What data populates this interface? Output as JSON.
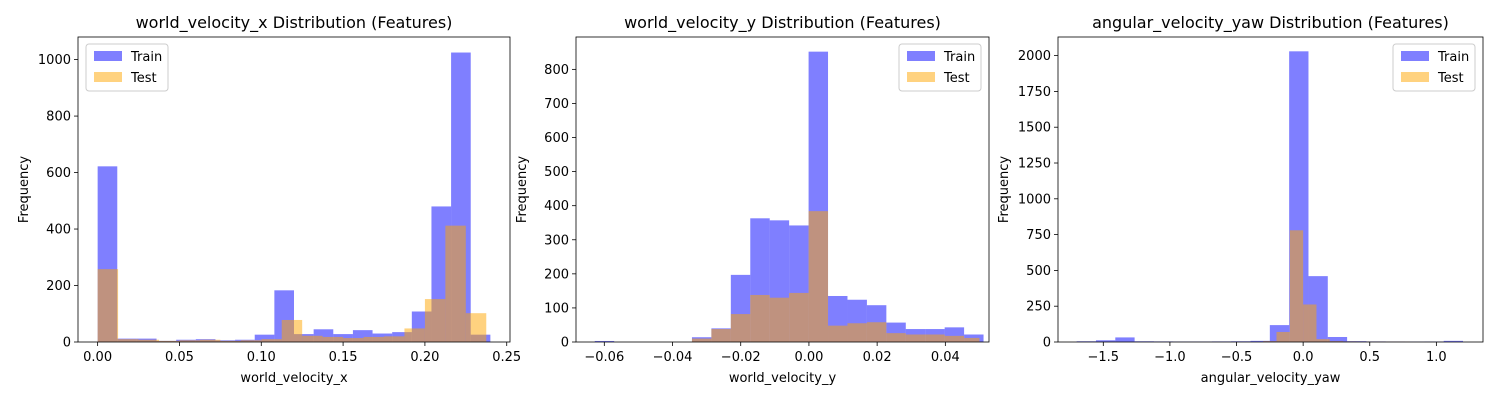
{
  "figure": {
    "background": "#ffffff"
  },
  "colors": {
    "train": "#0000ff",
    "test": "#ffa500",
    "train_alpha": 0.5,
    "test_alpha": 0.5
  },
  "chart_data": [
    {
      "type": "bar",
      "title": "world_velocity_x Distribution (Features)",
      "xlabel": "world_velocity_x",
      "ylabel": "Frequency",
      "xlim": [
        -0.012,
        0.252
      ],
      "ylim": [
        0,
        1080
      ],
      "xticks": [
        0.0,
        0.05,
        0.1,
        0.15,
        0.2,
        0.25
      ],
      "xtick_labels": [
        "0.00",
        "0.05",
        "0.10",
        "0.15",
        "0.20",
        "0.25"
      ],
      "yticks": [
        0,
        200,
        400,
        600,
        800,
        1000
      ],
      "ytick_labels": [
        "0",
        "200",
        "400",
        "600",
        "800",
        "1000"
      ],
      "legend": {
        "placement": "upper-left",
        "entries": [
          "Train",
          "Test"
        ]
      },
      "series": [
        {
          "name": "Train",
          "bin_edges": [
            0.0,
            0.012,
            0.024,
            0.036,
            0.048,
            0.06,
            0.072,
            0.084,
            0.096,
            0.108,
            0.12,
            0.132,
            0.144,
            0.156,
            0.168,
            0.18,
            0.192,
            0.204,
            0.216,
            0.228,
            0.24
          ],
          "values": [
            622,
            12,
            12,
            4,
            8,
            10,
            6,
            8,
            26,
            183,
            28,
            45,
            28,
            42,
            30,
            35,
            108,
            480,
            1025,
            26
          ]
        },
        {
          "name": "Test",
          "bin_edges": [
            0.0,
            0.0125,
            0.025,
            0.0375,
            0.05,
            0.0625,
            0.075,
            0.0875,
            0.1,
            0.1125,
            0.125,
            0.1375,
            0.15,
            0.1625,
            0.175,
            0.1875,
            0.2,
            0.2125,
            0.225,
            0.2375
          ],
          "values": [
            258,
            10,
            8,
            4,
            6,
            8,
            4,
            6,
            10,
            78,
            22,
            18,
            14,
            18,
            20,
            48,
            152,
            412,
            102
          ]
        }
      ]
    },
    {
      "type": "bar",
      "title": "world_velocity_y Distribution (Features)",
      "xlabel": "world_velocity_y",
      "ylabel": "Frequency",
      "xlim": [
        -0.0683,
        0.0528
      ],
      "ylim": [
        0,
        895
      ],
      "xticks": [
        -0.06,
        -0.04,
        -0.02,
        0.0,
        0.02,
        0.04
      ],
      "xtick_labels": [
        "−0.06",
        "−0.04",
        "−0.02",
        "0.00",
        "0.02",
        "0.04"
      ],
      "yticks": [
        0,
        100,
        200,
        300,
        400,
        500,
        600,
        700,
        800
      ],
      "ytick_labels": [
        "0",
        "100",
        "200",
        "300",
        "400",
        "500",
        "600",
        "700",
        "800"
      ],
      "legend": {
        "placement": "upper-right",
        "entries": [
          "Train",
          "Test"
        ]
      },
      "series": [
        {
          "name": "Train",
          "bin_edges": [
            -0.0628,
            -0.0571,
            -0.0514,
            -0.0457,
            -0.04,
            -0.0343,
            -0.0286,
            -0.0229,
            -0.0172,
            -0.0115,
            -0.0058,
            -0.0001,
            0.0056,
            0.0113,
            0.017,
            0.0227,
            0.0284,
            0.0341,
            0.0398,
            0.0455,
            0.0512
          ],
          "values": [
            3,
            0,
            0,
            0,
            0,
            14,
            40,
            197,
            363,
            357,
            342,
            852,
            135,
            124,
            108,
            57,
            38,
            38,
            43,
            22
          ]
        },
        {
          "name": "Test",
          "bin_edges": [
            -0.0343,
            -0.0286,
            -0.0229,
            -0.0172,
            -0.0115,
            -0.0058,
            -0.0001,
            0.0056,
            0.0113,
            0.017,
            0.0227,
            0.0284,
            0.0341,
            0.0398,
            0.0455,
            0.05
          ],
          "values": [
            10,
            38,
            82,
            138,
            130,
            144,
            384,
            48,
            55,
            58,
            26,
            22,
            22,
            18,
            12
          ]
        }
      ]
    },
    {
      "type": "bar",
      "title": "angular_velocity_yaw Distribution (Features)",
      "xlabel": "angular_velocity_yaw",
      "ylabel": "Frequency",
      "xlim": [
        -1.84,
        1.35
      ],
      "ylim": [
        0,
        2130
      ],
      "xticks": [
        -1.5,
        -1.0,
        -0.5,
        0.0,
        0.5,
        1.0
      ],
      "xtick_labels": [
        "−1.5",
        "−1.0",
        "−0.5",
        "0.0",
        "0.5",
        "1.0"
      ],
      "yticks": [
        0,
        250,
        500,
        750,
        1000,
        1250,
        1500,
        1750,
        2000
      ],
      "ytick_labels": [
        "0",
        "250",
        "500",
        "750",
        "1000",
        "1250",
        "1500",
        "1750",
        "2000"
      ],
      "legend": {
        "placement": "upper-right",
        "entries": [
          "Train",
          "Test"
        ]
      },
      "series": [
        {
          "name": "Train",
          "bin_edges": [
            -1.7,
            -1.555,
            -1.41,
            -1.265,
            -1.12,
            -0.975,
            -0.83,
            -0.685,
            -0.54,
            -0.395,
            -0.25,
            -0.105,
            0.04,
            0.185,
            0.33,
            0.475,
            0.62,
            0.765,
            0.91,
            1.055,
            1.2
          ],
          "values": [
            5,
            12,
            32,
            5,
            4,
            3,
            3,
            4,
            5,
            8,
            118,
            2030,
            460,
            35,
            6,
            4,
            3,
            2,
            3,
            8
          ]
        },
        {
          "name": "Test",
          "bin_edges": [
            -0.3,
            -0.2,
            -0.1,
            0.0,
            0.1,
            0.2,
            0.3,
            0.4,
            0.5,
            0.6,
            0.7,
            0.8
          ],
          "values": [
            6,
            70,
            780,
            262,
            20,
            6,
            4,
            3,
            2,
            2,
            2
          ]
        }
      ]
    }
  ]
}
